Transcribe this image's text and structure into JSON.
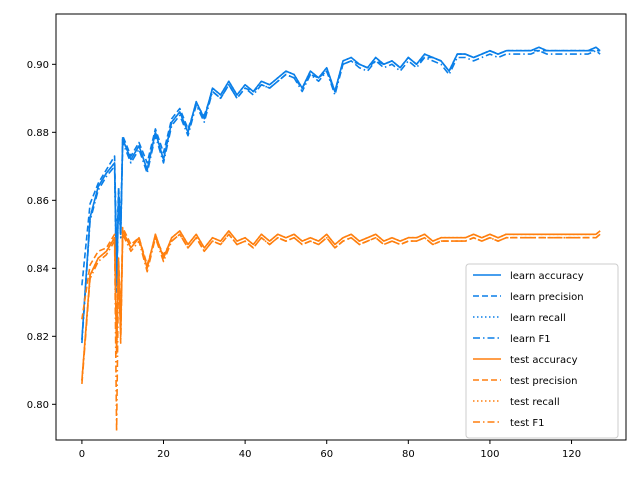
{
  "chart_data": {
    "type": "line",
    "title": "",
    "xlabel": "",
    "ylabel": "",
    "xlim": [
      -6.35,
      133.35
    ],
    "ylim": [
      0.7895,
      0.9148
    ],
    "xticks": [
      0,
      20,
      40,
      60,
      80,
      100,
      120
    ],
    "yticks": [
      0.8,
      0.82,
      0.84,
      0.86,
      0.88,
      0.9
    ],
    "xtick_labels": [
      "0",
      "20",
      "40",
      "60",
      "80",
      "100",
      "120"
    ],
    "ytick_labels": [
      "0.80",
      "0.82",
      "0.84",
      "0.86",
      "0.88",
      "0.90"
    ],
    "grid": false,
    "legend_position": "lower-right",
    "x": [
      0,
      2,
      4,
      6,
      8,
      8.5,
      9,
      9.5,
      10,
      12,
      14,
      16,
      18,
      20,
      22,
      24,
      26,
      28,
      30,
      32,
      34,
      36,
      38,
      40,
      42,
      44,
      46,
      48,
      50,
      52,
      54,
      56,
      58,
      60,
      62,
      64,
      66,
      68,
      70,
      72,
      74,
      76,
      78,
      80,
      82,
      84,
      86,
      88,
      90,
      92,
      94,
      96,
      98,
      100,
      102,
      104,
      106,
      108,
      110,
      112,
      114,
      116,
      118,
      120,
      122,
      124,
      126,
      127
    ],
    "series": [
      {
        "name": "learn accuracy",
        "color": "#1f77b4",
        "hex": "#0a7fe8",
        "dash": "solid",
        "values": [
          0.819,
          0.855,
          0.864,
          0.868,
          0.871,
          0.835,
          0.862,
          0.85,
          0.878,
          0.872,
          0.876,
          0.869,
          0.88,
          0.872,
          0.883,
          0.886,
          0.88,
          0.889,
          0.884,
          0.893,
          0.891,
          0.895,
          0.891,
          0.894,
          0.892,
          0.895,
          0.894,
          0.896,
          0.898,
          0.897,
          0.893,
          0.898,
          0.896,
          0.899,
          0.892,
          0.901,
          0.902,
          0.9,
          0.899,
          0.902,
          0.9,
          0.901,
          0.899,
          0.902,
          0.9,
          0.903,
          0.902,
          0.901,
          0.898,
          0.903,
          0.903,
          0.902,
          0.903,
          0.904,
          0.903,
          0.904,
          0.904,
          0.904,
          0.904,
          0.905,
          0.904,
          0.904,
          0.904,
          0.904,
          0.904,
          0.904,
          0.905,
          0.904
        ]
      },
      {
        "name": "learn precision",
        "color": "#0a7fe8",
        "dash": "dashed",
        "values": [
          0.835,
          0.859,
          0.865,
          0.869,
          0.873,
          0.845,
          0.864,
          0.853,
          0.879,
          0.873,
          0.877,
          0.871,
          0.881,
          0.874,
          0.884,
          0.887,
          0.881,
          0.888,
          0.885,
          0.892,
          0.89,
          0.894,
          0.89,
          0.893,
          0.892,
          0.894,
          0.893,
          0.895,
          0.897,
          0.896,
          0.893,
          0.897,
          0.896,
          0.898,
          0.892,
          0.9,
          0.901,
          0.9,
          0.899,
          0.901,
          0.9,
          0.901,
          0.899,
          0.902,
          0.9,
          0.902,
          0.902,
          0.901,
          0.898,
          0.903,
          0.903,
          0.902,
          0.903,
          0.904,
          0.903,
          0.904,
          0.904,
          0.904,
          0.904,
          0.904,
          0.904,
          0.904,
          0.904,
          0.904,
          0.904,
          0.904,
          0.904,
          0.904
        ]
      },
      {
        "name": "learn recall",
        "color": "#0a7fe8",
        "dash": "dotted",
        "values": [
          0.819,
          0.855,
          0.864,
          0.868,
          0.871,
          0.835,
          0.862,
          0.85,
          0.878,
          0.872,
          0.876,
          0.869,
          0.88,
          0.872,
          0.883,
          0.886,
          0.88,
          0.889,
          0.884,
          0.893,
          0.891,
          0.895,
          0.891,
          0.894,
          0.892,
          0.895,
          0.894,
          0.896,
          0.898,
          0.897,
          0.893,
          0.898,
          0.896,
          0.899,
          0.892,
          0.901,
          0.902,
          0.9,
          0.899,
          0.902,
          0.9,
          0.901,
          0.899,
          0.902,
          0.9,
          0.903,
          0.902,
          0.901,
          0.898,
          0.903,
          0.903,
          0.902,
          0.903,
          0.904,
          0.903,
          0.904,
          0.904,
          0.904,
          0.904,
          0.905,
          0.904,
          0.904,
          0.904,
          0.904,
          0.904,
          0.904,
          0.905,
          0.904
        ]
      },
      {
        "name": "learn F1",
        "color": "#0a7fe8",
        "dash": "dashdot",
        "values": [
          0.818,
          0.854,
          0.863,
          0.867,
          0.87,
          0.833,
          0.861,
          0.849,
          0.877,
          0.871,
          0.875,
          0.868,
          0.879,
          0.871,
          0.882,
          0.885,
          0.879,
          0.888,
          0.883,
          0.892,
          0.89,
          0.894,
          0.89,
          0.893,
          0.891,
          0.894,
          0.893,
          0.895,
          0.897,
          0.896,
          0.892,
          0.897,
          0.895,
          0.898,
          0.891,
          0.9,
          0.901,
          0.899,
          0.898,
          0.901,
          0.899,
          0.9,
          0.898,
          0.901,
          0.899,
          0.902,
          0.901,
          0.9,
          0.897,
          0.902,
          0.902,
          0.901,
          0.902,
          0.903,
          0.902,
          0.903,
          0.903,
          0.903,
          0.903,
          0.904,
          0.903,
          0.903,
          0.903,
          0.903,
          0.903,
          0.903,
          0.904,
          0.903
        ]
      },
      {
        "name": "test accuracy",
        "color": "#ff7f0e",
        "dash": "solid",
        "values": [
          0.807,
          0.838,
          0.843,
          0.845,
          0.849,
          0.815,
          0.842,
          0.82,
          0.851,
          0.846,
          0.849,
          0.84,
          0.85,
          0.843,
          0.849,
          0.851,
          0.847,
          0.85,
          0.846,
          0.849,
          0.848,
          0.851,
          0.848,
          0.849,
          0.847,
          0.85,
          0.848,
          0.85,
          0.849,
          0.85,
          0.848,
          0.849,
          0.848,
          0.85,
          0.847,
          0.849,
          0.85,
          0.848,
          0.849,
          0.85,
          0.848,
          0.849,
          0.848,
          0.849,
          0.849,
          0.85,
          0.848,
          0.849,
          0.849,
          0.849,
          0.849,
          0.85,
          0.849,
          0.85,
          0.849,
          0.85,
          0.85,
          0.85,
          0.85,
          0.85,
          0.85,
          0.85,
          0.85,
          0.85,
          0.85,
          0.85,
          0.85,
          0.851
        ]
      },
      {
        "name": "test precision",
        "color": "#ff7f0e",
        "dash": "dashed",
        "values": [
          0.825,
          0.841,
          0.845,
          0.846,
          0.85,
          0.82,
          0.843,
          0.825,
          0.852,
          0.847,
          0.849,
          0.841,
          0.849,
          0.844,
          0.848,
          0.85,
          0.846,
          0.849,
          0.845,
          0.848,
          0.847,
          0.85,
          0.847,
          0.848,
          0.846,
          0.849,
          0.847,
          0.849,
          0.848,
          0.849,
          0.847,
          0.848,
          0.847,
          0.849,
          0.846,
          0.848,
          0.849,
          0.847,
          0.848,
          0.849,
          0.847,
          0.848,
          0.847,
          0.848,
          0.848,
          0.849,
          0.847,
          0.848,
          0.848,
          0.848,
          0.848,
          0.849,
          0.848,
          0.849,
          0.848,
          0.849,
          0.849,
          0.849,
          0.849,
          0.849,
          0.849,
          0.849,
          0.849,
          0.849,
          0.849,
          0.849,
          0.849,
          0.85
        ]
      },
      {
        "name": "test recall",
        "color": "#ff7f0e",
        "dash": "dotted",
        "values": [
          0.807,
          0.838,
          0.843,
          0.845,
          0.849,
          0.815,
          0.842,
          0.82,
          0.851,
          0.846,
          0.849,
          0.84,
          0.85,
          0.843,
          0.849,
          0.851,
          0.847,
          0.85,
          0.846,
          0.849,
          0.848,
          0.851,
          0.848,
          0.849,
          0.847,
          0.85,
          0.848,
          0.85,
          0.849,
          0.85,
          0.848,
          0.849,
          0.848,
          0.85,
          0.847,
          0.849,
          0.85,
          0.848,
          0.849,
          0.85,
          0.848,
          0.849,
          0.848,
          0.849,
          0.849,
          0.85,
          0.848,
          0.849,
          0.849,
          0.849,
          0.849,
          0.85,
          0.849,
          0.85,
          0.849,
          0.85,
          0.85,
          0.85,
          0.85,
          0.85,
          0.85,
          0.85,
          0.85,
          0.85,
          0.85,
          0.85,
          0.85,
          0.851
        ]
      },
      {
        "name": "test F1",
        "color": "#ff7f0e",
        "dash": "dashdot",
        "values": [
          0.806,
          0.837,
          0.842,
          0.844,
          0.848,
          0.792,
          0.841,
          0.818,
          0.85,
          0.845,
          0.848,
          0.839,
          0.849,
          0.842,
          0.848,
          0.85,
          0.846,
          0.849,
          0.845,
          0.848,
          0.847,
          0.85,
          0.847,
          0.848,
          0.846,
          0.849,
          0.847,
          0.849,
          0.848,
          0.849,
          0.847,
          0.848,
          0.847,
          0.849,
          0.846,
          0.848,
          0.849,
          0.847,
          0.848,
          0.849,
          0.847,
          0.848,
          0.847,
          0.848,
          0.848,
          0.849,
          0.847,
          0.848,
          0.848,
          0.848,
          0.848,
          0.849,
          0.848,
          0.849,
          0.848,
          0.849,
          0.849,
          0.849,
          0.849,
          0.849,
          0.849,
          0.849,
          0.849,
          0.849,
          0.849,
          0.849,
          0.849,
          0.85
        ]
      }
    ]
  }
}
